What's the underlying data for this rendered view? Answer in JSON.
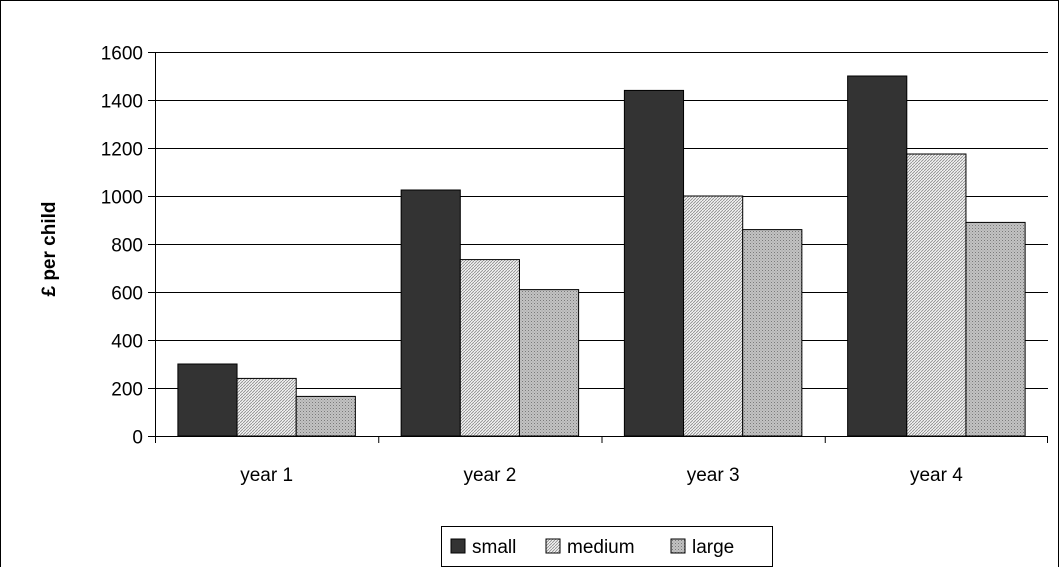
{
  "chart_data": {
    "type": "bar",
    "title": "",
    "xlabel": "",
    "ylabel": "£ per child",
    "categories": [
      "year 1",
      "year 2",
      "year 3",
      "year 4"
    ],
    "ylim": [
      0,
      1600
    ],
    "yticks": [
      0,
      200,
      400,
      600,
      800,
      1000,
      1200,
      1400,
      1600
    ],
    "grid": true,
    "legend_position": "bottom",
    "series": [
      {
        "name": "small",
        "values": [
          300,
          1025,
          1440,
          1500
        ],
        "color": "#333333",
        "pattern": "solid"
      },
      {
        "name": "medium",
        "values": [
          240,
          735,
          1000,
          1175
        ],
        "color": "#d9d9d9",
        "pattern": "fine-hatch"
      },
      {
        "name": "large",
        "values": [
          165,
          610,
          860,
          890
        ],
        "color": "#b3b3b3",
        "pattern": "dots"
      }
    ]
  }
}
